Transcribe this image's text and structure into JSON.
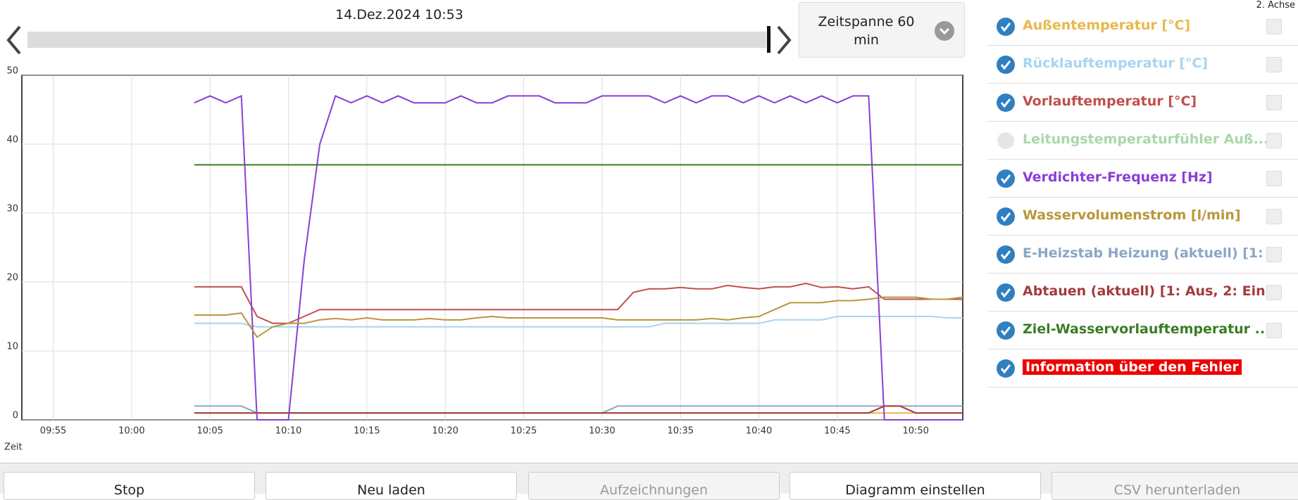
{
  "header": {
    "date": "14.Dez.2024 10:53",
    "timespan": "Zeitspanne 60 min",
    "second_axis": "2. Achse"
  },
  "chart_data": {
    "type": "line",
    "x_label": "Zeit",
    "grid": true,
    "xlim": [
      "09:53",
      "10:53"
    ],
    "xticks": [
      "09:55",
      "10:00",
      "10:05",
      "10:10",
      "10:15",
      "10:20",
      "10:25",
      "10:30",
      "10:35",
      "10:40",
      "10:45",
      "10:50"
    ],
    "ylim": [
      0,
      50
    ],
    "yticks": [
      0,
      10,
      20,
      30,
      40,
      50
    ],
    "x": [
      "10:04",
      "10:05",
      "10:06",
      "10:07",
      "10:08",
      "10:09",
      "10:10",
      "10:11",
      "10:12",
      "10:13",
      "10:14",
      "10:15",
      "10:16",
      "10:17",
      "10:18",
      "10:19",
      "10:20",
      "10:21",
      "10:22",
      "10:23",
      "10:24",
      "10:25",
      "10:26",
      "10:27",
      "10:28",
      "10:29",
      "10:30",
      "10:31",
      "10:32",
      "10:33",
      "10:34",
      "10:35",
      "10:36",
      "10:37",
      "10:38",
      "10:39",
      "10:40",
      "10:41",
      "10:42",
      "10:43",
      "10:44",
      "10:45",
      "10:46",
      "10:47",
      "10:48",
      "10:49",
      "10:50",
      "10:51",
      "10:52",
      "10:53"
    ],
    "series": [
      {
        "name": "Außentemperatur [°C]",
        "color": "#e8b84b",
        "checked": true,
        "values": [
          1,
          1,
          1,
          1,
          1,
          1,
          1,
          1,
          1,
          1,
          1,
          1,
          1,
          1,
          1,
          1,
          1,
          1,
          1,
          1,
          1,
          1,
          1,
          1,
          1,
          1,
          1,
          1,
          1,
          1,
          1,
          1,
          1,
          1,
          1,
          1,
          1,
          1,
          1,
          1,
          1,
          1,
          1,
          1,
          1,
          1,
          1,
          1,
          1,
          1
        ]
      },
      {
        "name": "Rücklauftemperatur [°C]",
        "color": "#a9d4ee",
        "checked": true,
        "values": [
          14,
          14,
          14,
          14,
          13.5,
          13.5,
          13.5,
          13.5,
          13.5,
          13.5,
          13.5,
          13.5,
          13.5,
          13.5,
          13.5,
          13.5,
          13.5,
          13.5,
          13.5,
          13.5,
          13.5,
          13.5,
          13.5,
          13.5,
          13.5,
          13.5,
          13.5,
          13.5,
          13.5,
          13.5,
          14,
          14,
          14,
          14,
          14,
          14,
          14,
          14.5,
          14.5,
          14.5,
          14.5,
          15,
          15,
          15,
          15,
          15,
          15,
          15,
          14.8,
          14.8
        ]
      },
      {
        "name": "Vorlauftemperatur [°C]",
        "color": "#c0504d",
        "checked": true,
        "values": [
          19.3,
          19.3,
          19.3,
          19.3,
          15,
          14,
          14,
          15,
          16,
          16,
          16,
          16,
          16,
          16,
          16,
          16,
          16,
          16,
          16,
          16,
          16,
          16,
          16,
          16,
          16,
          16,
          16,
          16,
          18.5,
          19,
          19,
          19.2,
          19,
          19,
          19.5,
          19.2,
          19,
          19.3,
          19.3,
          19.8,
          19.2,
          19.3,
          19,
          19.3,
          17.5,
          17.5,
          17.5,
          17.5,
          17.5,
          17.5
        ]
      },
      {
        "name": "Leitungstemperaturfühler Auß...",
        "color": "#a8d8a8",
        "checked": false
      },
      {
        "name": "Verdichter-Frequenz [Hz]",
        "color": "#8a3fd6",
        "checked": true,
        "values": [
          46,
          47,
          46,
          47,
          0,
          0,
          0,
          23,
          40,
          47,
          46,
          47,
          46,
          47,
          46,
          46,
          46,
          47,
          46,
          46,
          47,
          47,
          47,
          46,
          46,
          46,
          47,
          47,
          47,
          47,
          46,
          47,
          46,
          47,
          47,
          46,
          47,
          46,
          47,
          46,
          47,
          46,
          47,
          47,
          0,
          0,
          0,
          0,
          0,
          0
        ]
      },
      {
        "name": "Wasservolumenstrom [l/min]",
        "color": "#b8973a",
        "checked": true,
        "values": [
          15.2,
          15.2,
          15.2,
          15.5,
          12,
          13.5,
          14,
          14,
          14.5,
          14.7,
          14.5,
          14.8,
          14.5,
          14.5,
          14.5,
          14.7,
          14.5,
          14.5,
          14.8,
          15,
          14.8,
          14.8,
          14.8,
          14.8,
          14.8,
          14.8,
          14.8,
          14.5,
          14.5,
          14.5,
          14.5,
          14.5,
          14.5,
          14.7,
          14.5,
          14.8,
          15,
          16,
          17,
          17,
          17,
          17.3,
          17.3,
          17.5,
          17.8,
          17.8,
          17.8,
          17.5,
          17.5,
          17.8
        ]
      },
      {
        "name": "E-Heizstab Heizung (aktuell) [1: ...",
        "color": "#8ba6c6",
        "checked": true,
        "values": [
          2,
          2,
          2,
          2,
          1,
          1,
          1,
          1,
          1,
          1,
          1,
          1,
          1,
          1,
          1,
          1,
          1,
          1,
          1,
          1,
          1,
          1,
          1,
          1,
          1,
          1,
          1,
          2,
          2,
          2,
          2,
          2,
          2,
          2,
          2,
          2,
          2,
          2,
          2,
          2,
          2,
          2,
          2,
          2,
          2,
          2,
          2,
          2,
          2,
          2
        ]
      },
      {
        "name": "Abtauen (aktuell) [1: Aus, 2: Ein]",
        "color": "#a33b3b",
        "checked": true,
        "values": [
          1,
          1,
          1,
          1,
          1,
          1,
          1,
          1,
          1,
          1,
          1,
          1,
          1,
          1,
          1,
          1,
          1,
          1,
          1,
          1,
          1,
          1,
          1,
          1,
          1,
          1,
          1,
          1,
          1,
          1,
          1,
          1,
          1,
          1,
          1,
          1,
          1,
          1,
          1,
          1,
          1,
          1,
          1,
          1,
          2,
          2,
          1,
          1,
          1,
          1
        ]
      },
      {
        "name": "Ziel-Wasservorlauftemperatur ...",
        "color": "#3a7d24",
        "checked": true,
        "values": [
          37,
          37,
          37,
          37,
          37,
          37,
          37,
          37,
          37,
          37,
          37,
          37,
          37,
          37,
          37,
          37,
          37,
          37,
          37,
          37,
          37,
          37,
          37,
          37,
          37,
          37,
          37,
          37,
          37,
          37,
          37,
          37,
          37,
          37,
          37,
          37,
          37,
          37,
          37,
          37,
          37,
          37,
          37,
          37,
          37,
          37,
          37,
          37,
          37,
          37
        ]
      },
      {
        "name": "Information über den Fehler",
        "color": "#ee0000",
        "checked": true,
        "style": "badge"
      }
    ]
  },
  "buttons": [
    {
      "label": "Stop",
      "enabled": true
    },
    {
      "label": "Neu laden",
      "enabled": true
    },
    {
      "label": "Aufzeichnungen",
      "enabled": false
    },
    {
      "label": "Diagramm einstellen",
      "enabled": true
    },
    {
      "label": "CSV herunterladen",
      "enabled": false
    }
  ]
}
